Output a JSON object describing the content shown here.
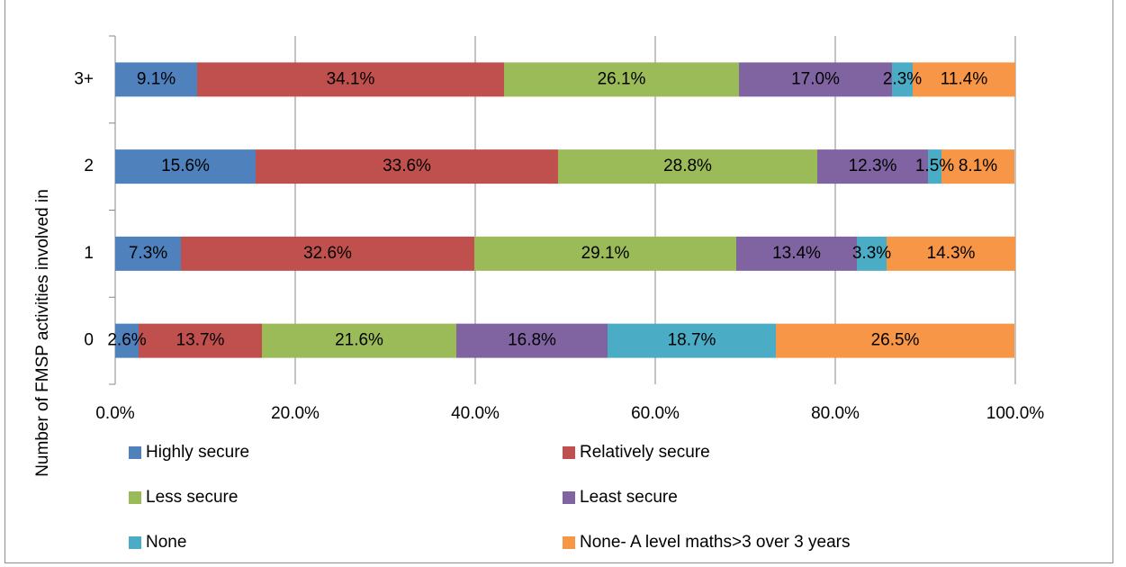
{
  "chart_data": {
    "type": "bar",
    "orientation": "horizontal",
    "stacked": "100%",
    "title": "",
    "ylabel": "Number of FMSP activities involved in",
    "xlabel": "",
    "xlim": [
      0,
      100
    ],
    "x_ticks": [
      "0.0%",
      "20.0%",
      "40.0%",
      "60.0%",
      "80.0%",
      "100.0%"
    ],
    "categories": [
      "0",
      "1",
      "2",
      "3+"
    ],
    "grid": "vertical",
    "legend_position": "bottom",
    "series": [
      {
        "name": "Highly secure",
        "color": "#4F81BD",
        "values": [
          2.6,
          7.3,
          15.6,
          9.1
        ],
        "labels": [
          "2.6%",
          "7.3%",
          "15.6%",
          "9.1%"
        ]
      },
      {
        "name": "Relatively secure",
        "color": "#C0504D",
        "values": [
          13.7,
          32.6,
          33.6,
          34.1
        ],
        "labels": [
          "13.7%",
          "32.6%",
          "33.6%",
          "34.1%"
        ]
      },
      {
        "name": "Less secure",
        "color": "#9BBB59",
        "values": [
          21.6,
          29.1,
          28.8,
          26.1
        ],
        "labels": [
          "21.6%",
          "29.1%",
          "28.8%",
          "26.1%"
        ]
      },
      {
        "name": "Least secure",
        "color": "#8064A2",
        "values": [
          16.8,
          13.4,
          12.3,
          17.0
        ],
        "labels": [
          "16.8%",
          "13.4%",
          "12.3%",
          "17.0%"
        ]
      },
      {
        "name": "None",
        "color": "#4BACC6",
        "values": [
          18.7,
          3.3,
          1.5,
          2.3
        ],
        "labels": [
          "18.7%",
          "3.3%",
          "1.5%",
          "2.3%"
        ]
      },
      {
        "name": "None- A level maths>3 over 3 years",
        "color": "#F79646",
        "values": [
          26.5,
          14.3,
          8.1,
          11.4
        ],
        "labels": [
          "26.5%",
          "14.3%",
          "8.1%",
          "11.4%"
        ]
      }
    ]
  }
}
